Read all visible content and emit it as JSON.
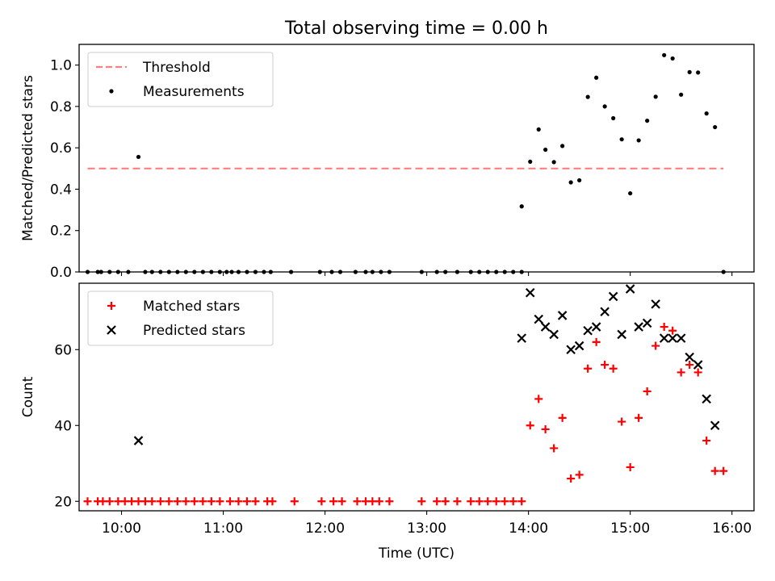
{
  "title": "Total observing time = 0.00 h",
  "chart_data": [
    {
      "type": "scatter",
      "ylabel": "Matched/Predicted stars",
      "xlim": [
        "09:35",
        "16:13"
      ],
      "ylim": [
        0,
        1.1
      ],
      "yticks": [
        "0.0",
        "0.2",
        "0.4",
        "0.6",
        "0.8",
        "1.0"
      ],
      "grid": false,
      "legend_position": "top-left",
      "threshold": {
        "name": "Threshold",
        "value": 0.5,
        "x_range": [
          "09:40",
          "15:55"
        ],
        "color": "#ff7f7f",
        "style": "dashed"
      },
      "series": [
        {
          "name": "Measurements",
          "color": "#000000",
          "marker": "dot",
          "points": [
            [
              "09:40",
              0.0
            ],
            [
              "09:46",
              0.0
            ],
            [
              "09:48",
              0.0
            ],
            [
              "09:53",
              0.0
            ],
            [
              "09:58",
              0.0
            ],
            [
              "10:04",
              0.0
            ],
            [
              "10:10",
              0.556
            ],
            [
              "10:14",
              0.0
            ],
            [
              "10:18",
              0.0
            ],
            [
              "10:23",
              0.0
            ],
            [
              "10:28",
              0.0
            ],
            [
              "10:33",
              0.0
            ],
            [
              "10:38",
              0.0
            ],
            [
              "10:43",
              0.0
            ],
            [
              "10:48",
              0.0
            ],
            [
              "10:53",
              0.0
            ],
            [
              "10:58",
              0.0
            ],
            [
              "11:02",
              0.0
            ],
            [
              "11:05",
              0.0
            ],
            [
              "11:09",
              0.0
            ],
            [
              "11:14",
              0.0
            ],
            [
              "11:19",
              0.0
            ],
            [
              "11:24",
              0.0
            ],
            [
              "11:28",
              0.0
            ],
            [
              "11:40",
              0.0
            ],
            [
              "11:57",
              0.0
            ],
            [
              "12:04",
              0.0
            ],
            [
              "12:09",
              0.0
            ],
            [
              "12:18",
              0.0
            ],
            [
              "12:24",
              0.0
            ],
            [
              "12:28",
              0.0
            ],
            [
              "12:33",
              0.0
            ],
            [
              "12:38",
              0.0
            ],
            [
              "12:57",
              0.0
            ],
            [
              "13:06",
              0.0
            ],
            [
              "13:11",
              0.0
            ],
            [
              "13:18",
              0.0
            ],
            [
              "13:26",
              0.0
            ],
            [
              "13:31",
              0.0
            ],
            [
              "13:36",
              0.0
            ],
            [
              "13:41",
              0.0
            ],
            [
              "13:46",
              0.0
            ],
            [
              "13:51",
              0.0
            ],
            [
              "13:56",
              0.0
            ],
            [
              "13:56",
              0.317
            ],
            [
              "14:01",
              0.533
            ],
            [
              "14:06",
              0.689
            ],
            [
              "14:10",
              0.591
            ],
            [
              "14:15",
              0.531
            ],
            [
              "14:20",
              0.609
            ],
            [
              "14:25",
              0.433
            ],
            [
              "14:30",
              0.443
            ],
            [
              "14:35",
              0.846
            ],
            [
              "14:40",
              0.939
            ],
            [
              "14:45",
              0.8
            ],
            [
              "14:50",
              0.743
            ],
            [
              "14:55",
              0.641
            ],
            [
              "15:00",
              0.38
            ],
            [
              "15:05",
              0.636
            ],
            [
              "15:10",
              0.731
            ],
            [
              "15:15",
              0.847
            ],
            [
              "15:20",
              1.048
            ],
            [
              "15:25",
              1.032
            ],
            [
              "15:30",
              0.857
            ],
            [
              "15:35",
              0.966
            ],
            [
              "15:40",
              0.964
            ],
            [
              "15:45",
              0.766
            ],
            [
              "15:50",
              0.7
            ],
            [
              "15:55",
              0.0
            ]
          ]
        }
      ]
    },
    {
      "type": "scatter",
      "xlabel": "Time (UTC)",
      "ylabel": "Count",
      "xlim": [
        "09:35",
        "16:13"
      ],
      "ylim": [
        17.5,
        77.5
      ],
      "yticks": [
        "20",
        "40",
        "60"
      ],
      "xticks": [
        "10:00",
        "11:00",
        "12:00",
        "13:00",
        "14:00",
        "15:00",
        "16:00"
      ],
      "grid": false,
      "legend_position": "top-left",
      "series": [
        {
          "name": "Matched stars",
          "color": "#ff0000",
          "marker": "plus",
          "points": [
            [
              "09:40",
              20
            ],
            [
              "09:46",
              20
            ],
            [
              "09:49",
              20
            ],
            [
              "09:53",
              20
            ],
            [
              "09:58",
              20
            ],
            [
              "10:02",
              20
            ],
            [
              "10:06",
              20
            ],
            [
              "10:10",
              20
            ],
            [
              "10:14",
              20
            ],
            [
              "10:18",
              20
            ],
            [
              "10:23",
              20
            ],
            [
              "10:28",
              20
            ],
            [
              "10:33",
              20
            ],
            [
              "10:38",
              20
            ],
            [
              "10:43",
              20
            ],
            [
              "10:48",
              20
            ],
            [
              "10:53",
              20
            ],
            [
              "10:58",
              20
            ],
            [
              "11:04",
              20
            ],
            [
              "11:09",
              20
            ],
            [
              "11:14",
              20
            ],
            [
              "11:19",
              20
            ],
            [
              "11:26",
              20
            ],
            [
              "11:29",
              20
            ],
            [
              "11:42",
              20
            ],
            [
              "11:58",
              20
            ],
            [
              "12:05",
              20
            ],
            [
              "12:10",
              20
            ],
            [
              "12:19",
              20
            ],
            [
              "12:24",
              20
            ],
            [
              "12:28",
              20
            ],
            [
              "12:32",
              20
            ],
            [
              "12:38",
              20
            ],
            [
              "12:57",
              20
            ],
            [
              "13:06",
              20
            ],
            [
              "13:11",
              20
            ],
            [
              "13:18",
              20
            ],
            [
              "13:26",
              20
            ],
            [
              "13:31",
              20
            ],
            [
              "13:36",
              20
            ],
            [
              "13:41",
              20
            ],
            [
              "13:46",
              20
            ],
            [
              "13:51",
              20
            ],
            [
              "13:56",
              20
            ],
            [
              "14:01",
              40
            ],
            [
              "14:06",
              47
            ],
            [
              "14:10",
              39
            ],
            [
              "14:15",
              34
            ],
            [
              "14:20",
              42
            ],
            [
              "14:25",
              26
            ],
            [
              "14:30",
              27
            ],
            [
              "14:35",
              55
            ],
            [
              "14:40",
              62
            ],
            [
              "14:45",
              56
            ],
            [
              "14:50",
              55
            ],
            [
              "14:55",
              41
            ],
            [
              "15:00",
              29
            ],
            [
              "15:05",
              42
            ],
            [
              "15:10",
              49
            ],
            [
              "15:15",
              61
            ],
            [
              "15:20",
              66
            ],
            [
              "15:25",
              65
            ],
            [
              "15:30",
              54
            ],
            [
              "15:35",
              56
            ],
            [
              "15:40",
              54
            ],
            [
              "15:45",
              36
            ],
            [
              "15:50",
              28
            ],
            [
              "15:55",
              28
            ]
          ]
        },
        {
          "name": "Predicted stars",
          "color": "#000000",
          "marker": "x",
          "points": [
            [
              "10:10",
              36
            ],
            [
              "13:56",
              63
            ],
            [
              "14:01",
              75
            ],
            [
              "14:06",
              68
            ],
            [
              "14:10",
              66
            ],
            [
              "14:15",
              64
            ],
            [
              "14:20",
              69
            ],
            [
              "14:25",
              60
            ],
            [
              "14:30",
              61
            ],
            [
              "14:35",
              65
            ],
            [
              "14:40",
              66
            ],
            [
              "14:45",
              70
            ],
            [
              "14:50",
              74
            ],
            [
              "14:55",
              64
            ],
            [
              "15:00",
              76
            ],
            [
              "15:05",
              66
            ],
            [
              "15:10",
              67
            ],
            [
              "15:15",
              72
            ],
            [
              "15:20",
              63
            ],
            [
              "15:25",
              63
            ],
            [
              "15:30",
              63
            ],
            [
              "15:35",
              58
            ],
            [
              "15:40",
              56
            ],
            [
              "15:45",
              47
            ],
            [
              "15:50",
              40
            ]
          ]
        }
      ]
    }
  ]
}
